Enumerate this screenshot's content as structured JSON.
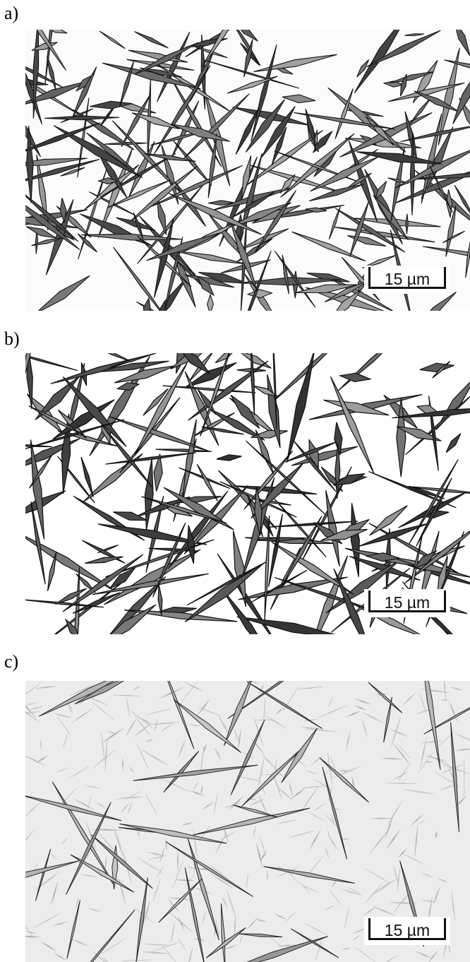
{
  "panels": [
    {
      "label": "a)",
      "scale_bar": "15 µm"
    },
    {
      "label": "b)",
      "scale_bar": "15 µm"
    },
    {
      "label": "c)",
      "scale_bar": "15 µm"
    }
  ],
  "colors": {
    "background": "#ffffff",
    "plate_dark": "#1c1c1c",
    "plate_gray": "#8a8a8a",
    "matrix_c": "#e9e9e9"
  }
}
